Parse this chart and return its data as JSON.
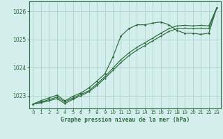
{
  "background_color": "#d4eeee",
  "grid_color": "#b0d8cc",
  "line_color": "#2d6b3c",
  "title": "Graphe pression niveau de la mer (hPa)",
  "xlim": [
    -0.5,
    23.5
  ],
  "ylim": [
    1022.55,
    1026.35
  ],
  "yticks": [
    1023,
    1024,
    1025,
    1026
  ],
  "xticks": [
    0,
    1,
    2,
    3,
    4,
    5,
    6,
    7,
    8,
    9,
    10,
    11,
    12,
    13,
    14,
    15,
    16,
    17,
    18,
    19,
    20,
    21,
    22,
    23
  ],
  "series1_marked": [
    [
      0,
      1022.7
    ],
    [
      1,
      1022.83
    ],
    [
      2,
      1022.92
    ],
    [
      3,
      1023.02
    ],
    [
      4,
      1022.82
    ],
    [
      5,
      1022.98
    ],
    [
      6,
      1023.1
    ],
    [
      7,
      1023.28
    ],
    [
      8,
      1023.52
    ],
    [
      9,
      1023.78
    ],
    [
      10,
      1024.38
    ],
    [
      11,
      1025.12
    ],
    [
      12,
      1025.38
    ],
    [
      13,
      1025.52
    ],
    [
      14,
      1025.52
    ],
    [
      15,
      1025.58
    ],
    [
      16,
      1025.62
    ],
    [
      17,
      1025.52
    ],
    [
      18,
      1025.32
    ],
    [
      19,
      1025.22
    ],
    [
      20,
      1025.22
    ],
    [
      21,
      1025.18
    ],
    [
      22,
      1025.22
    ],
    [
      23,
      1026.12
    ]
  ],
  "series2_straight": [
    [
      0,
      1022.7
    ],
    [
      1,
      1022.78
    ],
    [
      2,
      1022.86
    ],
    [
      3,
      1022.95
    ],
    [
      4,
      1022.78
    ],
    [
      5,
      1022.92
    ],
    [
      6,
      1023.05
    ],
    [
      7,
      1023.18
    ],
    [
      8,
      1023.42
    ],
    [
      9,
      1023.68
    ],
    [
      10,
      1023.98
    ],
    [
      11,
      1024.28
    ],
    [
      12,
      1024.52
    ],
    [
      13,
      1024.72
    ],
    [
      14,
      1024.88
    ],
    [
      15,
      1025.05
    ],
    [
      16,
      1025.22
    ],
    [
      17,
      1025.38
    ],
    [
      18,
      1025.48
    ],
    [
      19,
      1025.5
    ],
    [
      20,
      1025.48
    ],
    [
      21,
      1025.5
    ],
    [
      22,
      1025.48
    ],
    [
      23,
      1026.12
    ]
  ],
  "series3_lower": [
    [
      0,
      1022.7
    ],
    [
      1,
      1022.75
    ],
    [
      2,
      1022.82
    ],
    [
      3,
      1022.9
    ],
    [
      4,
      1022.72
    ],
    [
      5,
      1022.88
    ],
    [
      6,
      1023.0
    ],
    [
      7,
      1023.14
    ],
    [
      8,
      1023.36
    ],
    [
      9,
      1023.62
    ],
    [
      10,
      1023.9
    ],
    [
      11,
      1024.18
    ],
    [
      12,
      1024.42
    ],
    [
      13,
      1024.62
    ],
    [
      14,
      1024.78
    ],
    [
      15,
      1024.95
    ],
    [
      16,
      1025.12
    ],
    [
      17,
      1025.28
    ],
    [
      18,
      1025.38
    ],
    [
      19,
      1025.4
    ],
    [
      20,
      1025.38
    ],
    [
      21,
      1025.4
    ],
    [
      22,
      1025.38
    ],
    [
      23,
      1026.12
    ]
  ]
}
